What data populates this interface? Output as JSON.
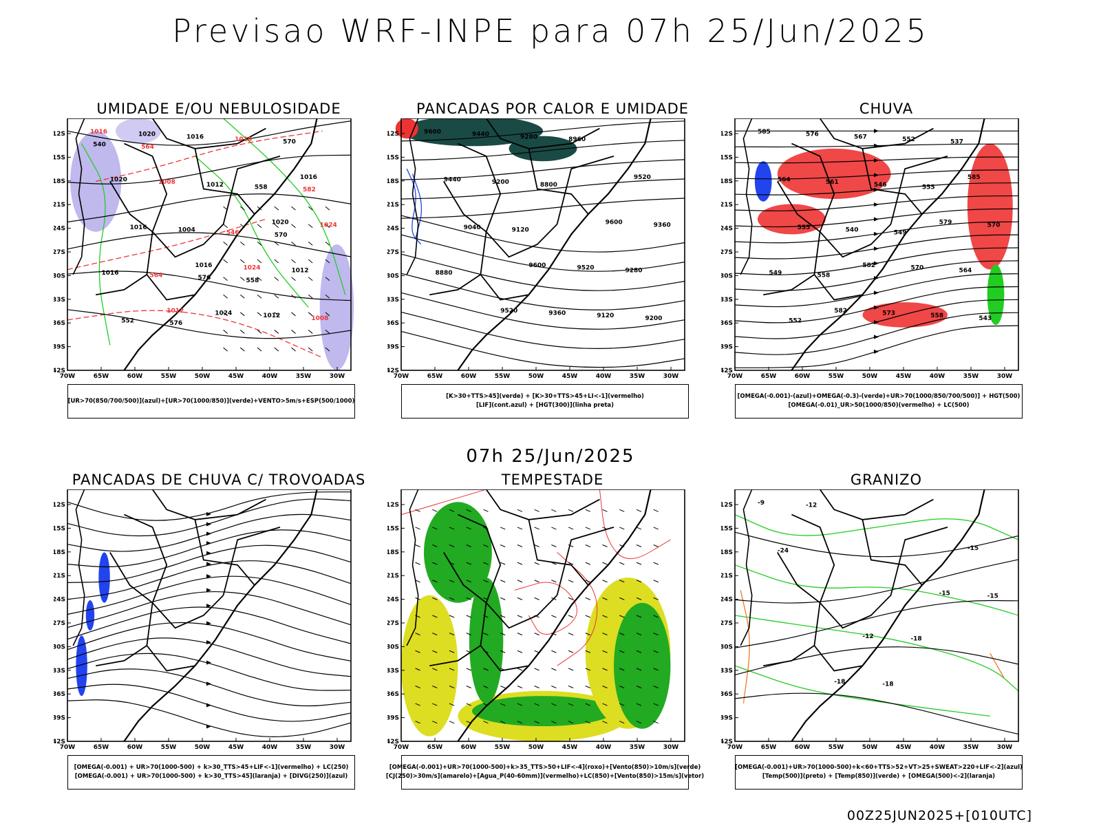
{
  "main_title": "Previsao WRF-INPE  para 07h 25/Jun/2025",
  "mid_date": "07h 25/Jun/2025",
  "footer": "00Z25JUN2025+[010UTC]",
  "axes": {
    "lat_ticks": [
      "12S",
      "15S",
      "18S",
      "21S",
      "24S",
      "27S",
      "30S",
      "33S",
      "36S",
      "39S",
      "42S"
    ],
    "lon_ticks": [
      "70W",
      "65W",
      "60W",
      "55W",
      "50W",
      "45W",
      "40W",
      "35W",
      "30W"
    ]
  },
  "colors": {
    "umidade_media": "#b0a8ea",
    "umidade_baixa": "#22cc22",
    "pancadas_verde": "#1a4a44",
    "chuva_vermelho": "#ee3333",
    "omega_azul": "#2244ee",
    "tempestade_verde": "#22aa22",
    "tempestade_amarelo": "#dddd22",
    "granizo_laranja": "#ee7722"
  },
  "panels": [
    {
      "title": "UMIDADE E/OU NEBULOSIDADE",
      "legend": [
        "[UR>70(850/700/500)](azul)+[UR>70(1000/850)](verde)+VENTO>5m/s+ESP(500/1000)"
      ],
      "contour_labels": [
        "1016",
        "1016",
        "1016",
        "1012",
        "1020",
        "1020",
        "1024",
        "1020",
        "1024",
        "1024",
        "1016",
        "1012",
        "1008",
        "1012",
        "1016",
        "1020",
        "1016",
        "1012",
        "1008",
        "1004",
        "570",
        "564",
        "558",
        "552",
        "546",
        "540",
        "576",
        "582",
        "576",
        "570",
        "564",
        "558"
      ]
    },
    {
      "title": "PANCADAS POR CALOR E UMIDADE",
      "legend": [
        "[K>30+TTS>45](verde) + [K>30+TTS>45+LI<-1](vermelho)",
        "[LIF](cont.azul) + [HGT(300)](linha preta)"
      ],
      "contour_labels": [
        "9600",
        "9600",
        "9520",
        "9520",
        "9600",
        "9440",
        "9520",
        "9440",
        "9360",
        "9360",
        "9280",
        "9280",
        "9200",
        "9120",
        "9040",
        "8960",
        "8880",
        "8800",
        "9200",
        "9120"
      ]
    },
    {
      "title": "CHUVA",
      "legend": [
        "[OMEGA(-0.001)-(azul)+OMEGA(-0.3)-(verde)+UR>70(1000/850/700/500)] + HGT(500)",
        "[OMEGA(-0.01)_UR>50(1000/850)(vermelho) + LC(500)"
      ],
      "contour_labels": [
        "585",
        "582",
        "585",
        "582",
        "579",
        "576",
        "570",
        "564",
        "573",
        "570",
        "567",
        "564",
        "561",
        "558",
        "555",
        "552",
        "549",
        "546",
        "543",
        "540",
        "537",
        "558",
        "555",
        "552",
        "549"
      ]
    },
    {
      "title": "PANCADAS DE CHUVA C/ TROVOADAS",
      "legend": [
        "[OMEGA(-0.001) + UR>70(1000-500) + k>30_TTS>45+LIF<-1](vermelho) + LC(250)",
        "[OMEGA(-0.001) + UR>70(1000-500) + k>30_TTS>45](laranja) + [DIVG(250)](azul)"
      ],
      "contour_labels": []
    },
    {
      "title": "TEMPESTADE",
      "legend": [
        "[OMEGA(-0.001)+UR>70(1000-500)+k>35_TTS>50+LIF<-4](roxo)+[Vento(850)>10m/s](verde)",
        "[CJ(250)>30m/s](amarelo)+[Agua_P(40-60mm)](vermelho)+LC(850)+[Vento(850)>15m/s](vetor)"
      ],
      "contour_labels": []
    },
    {
      "title": "GRANIZO",
      "legend": [
        "[OMEGA(-0.001)+UR>70(1000-500)+k<60+TTS>52+VT>25+SWEAT>220+LIF<-2](azul)",
        "[Temp(500)](preto) + [Temp(850)](verde) + [OMEGA(500)<-2](laranja)"
      ],
      "contour_labels": [
        "-9",
        "-12",
        "-15",
        "-18",
        "-15",
        "-12",
        "-18",
        "-24",
        "-18",
        "-15"
      ]
    }
  ]
}
